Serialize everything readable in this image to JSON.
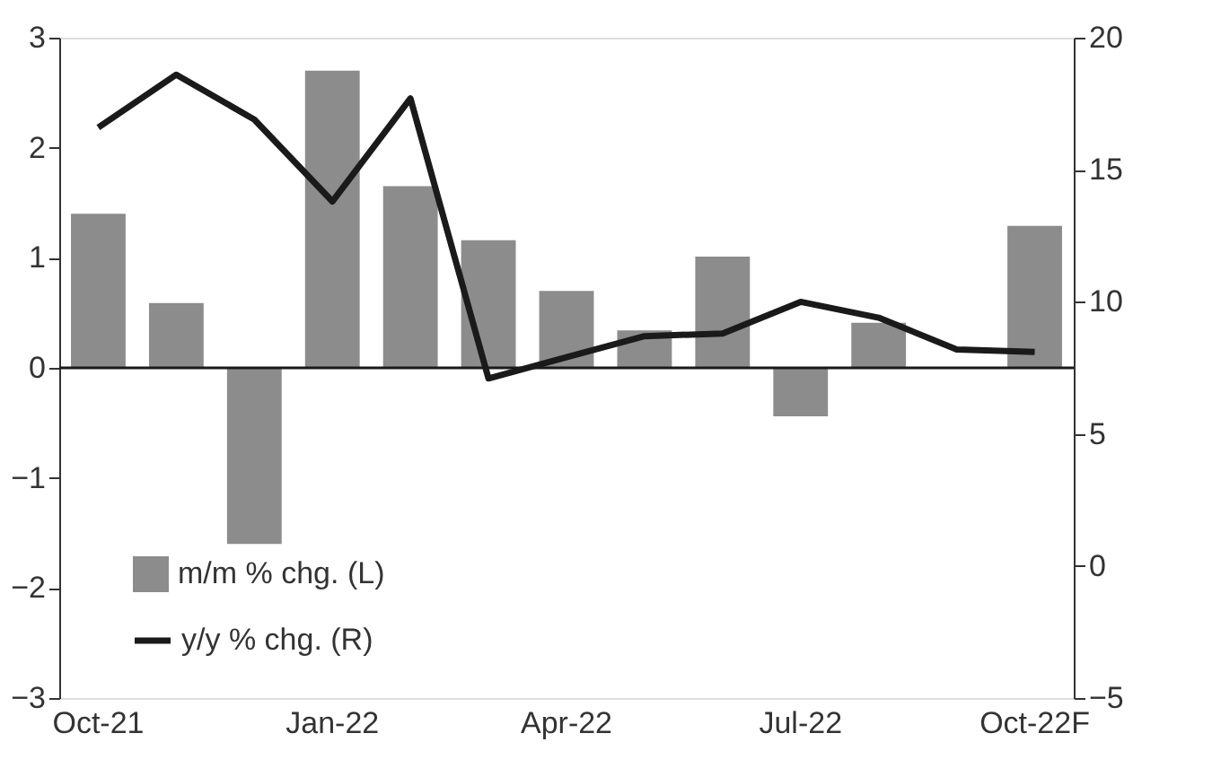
{
  "chart_data": {
    "type": "bar",
    "categories": [
      "Oct-21",
      null,
      null,
      "Jan-22",
      null,
      null,
      "Apr-22",
      null,
      null,
      "Jul-22",
      null,
      null,
      "Oct-22F"
    ],
    "series": [
      {
        "name": "m/m % chg. (L)",
        "color": "#8c8c8c",
        "values": [
          1.4,
          0.59,
          -1.6,
          2.7,
          1.65,
          1.16,
          0.7,
          0.34,
          1.01,
          -0.44,
          0.41,
          null,
          1.29
        ]
      },
      {
        "name": "y/y % chg. (R)",
        "type": "line",
        "axis": "y2",
        "color": "#1a1a1a",
        "values": [
          16.6,
          18.6,
          16.9,
          13.8,
          17.7,
          7.1,
          7.9,
          8.7,
          8.8,
          10.0,
          9.4,
          8.2,
          8.1
        ]
      }
    ],
    "ylim": [
      -3,
      3
    ],
    "yticks": [
      -3,
      -2,
      -1,
      0,
      1,
      2,
      3
    ],
    "y2lim": [
      -5,
      20
    ],
    "y2ticks": [
      -5,
      0,
      5,
      10,
      15,
      20
    ],
    "ref_lines": [
      {
        "axis": "y",
        "value": 0,
        "color": "#1a1a1a"
      }
    ],
    "legend": "bottom left",
    "grid": false
  }
}
